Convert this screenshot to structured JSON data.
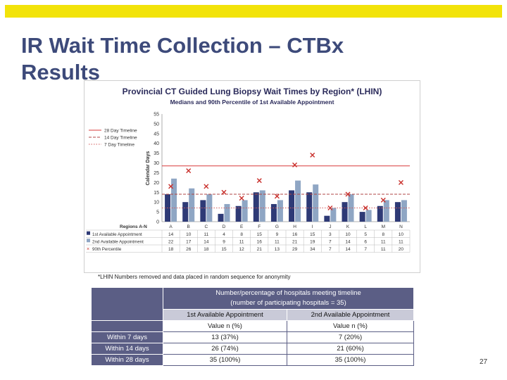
{
  "slide": {
    "title": "IR Wait Time Collection – CTBx Results",
    "page_number": "27",
    "accent_color": "#f2e30a",
    "title_color": "#3d4a7a"
  },
  "chart_data": {
    "type": "bar",
    "title": "Provincial CT Guided Lung Biopsy Wait Times by Region* (LHIN)",
    "subtitle": "Medians and 90th Percentile of 1st Available Appointment",
    "ylabel": "Calendar Days",
    "xlabel": "Regions A-N",
    "ylim": [
      0,
      55
    ],
    "yticks": [
      0,
      5,
      10,
      15,
      20,
      25,
      30,
      35,
      40,
      45,
      50,
      55
    ],
    "categories": [
      "A",
      "B",
      "C",
      "D",
      "E",
      "F",
      "G",
      "H",
      "I",
      "J",
      "K",
      "L",
      "M",
      "N"
    ],
    "series": [
      {
        "name": "1st Available Appointment",
        "kind": "bar",
        "color": "#2e3a76",
        "values": [
          14,
          10,
          11,
          4,
          8,
          15,
          9,
          16,
          15,
          3,
          10,
          5,
          8,
          10
        ]
      },
      {
        "name": "2nd Available Appointment",
        "kind": "bar",
        "color": "#8fa6c4",
        "values": [
          22,
          17,
          14,
          9,
          11,
          16,
          11,
          21,
          19,
          7,
          14,
          6,
          11,
          11
        ]
      },
      {
        "name": "90th Percentile",
        "kind": "marker",
        "color": "#c9302c",
        "values": [
          18,
          26,
          18,
          15,
          12,
          21,
          13,
          29,
          34,
          7,
          14,
          7,
          11,
          20
        ]
      }
    ],
    "timelines": [
      {
        "name": "28 Day Timeline",
        "value": 28.5,
        "style": "solid",
        "color": "#d9393a"
      },
      {
        "name": "14 Day Timeline",
        "value": 14,
        "style": "dashed",
        "color": "#b14545"
      },
      {
        "name": "7 Day Timeline",
        "value": 7,
        "style": "dotted",
        "color": "#d35a5a"
      }
    ],
    "table_rows": [
      {
        "label": "1st Available Appointment",
        "values": [
          "14",
          "10",
          "11",
          "4",
          "8",
          "15",
          "9",
          "16",
          "15",
          "3",
          "10",
          "5",
          "8",
          "10"
        ]
      },
      {
        "label": "2nd Available Appointment",
        "values": [
          "22",
          "17",
          "14",
          "9",
          "11",
          "16",
          "11",
          "21",
          "19",
          "7",
          "14",
          "6",
          "11",
          "11"
        ]
      },
      {
        "label": "90th Percentile",
        "values": [
          "18",
          "26",
          "18",
          "15",
          "12",
          "21",
          "13",
          "29",
          "34",
          "7",
          "14",
          "7",
          "11",
          "20"
        ]
      }
    ],
    "grid": false,
    "legend_position": "left"
  },
  "footnote": "*LHIN Numbers removed and data placed in random sequence for anonymity",
  "summary_table": {
    "header_line1": "Number/percentage of hospitals meeting timeline",
    "header_line2": "(number of participating hospitals = 35)",
    "col1": "1st Available Appointment",
    "col2": "2nd Available Appointment",
    "sub1": "Value n (%)",
    "sub2": "Value n (%)",
    "rows": [
      {
        "label": "Within 7 days",
        "v1": "13 (37%)",
        "v2": "7 (20%)"
      },
      {
        "label": "Within 14 days",
        "v1": "26 (74%)",
        "v2": "21 (60%)"
      },
      {
        "label": "Within 28 days",
        "v1": "35 (100%)",
        "v2": "35 (100%)"
      }
    ]
  }
}
